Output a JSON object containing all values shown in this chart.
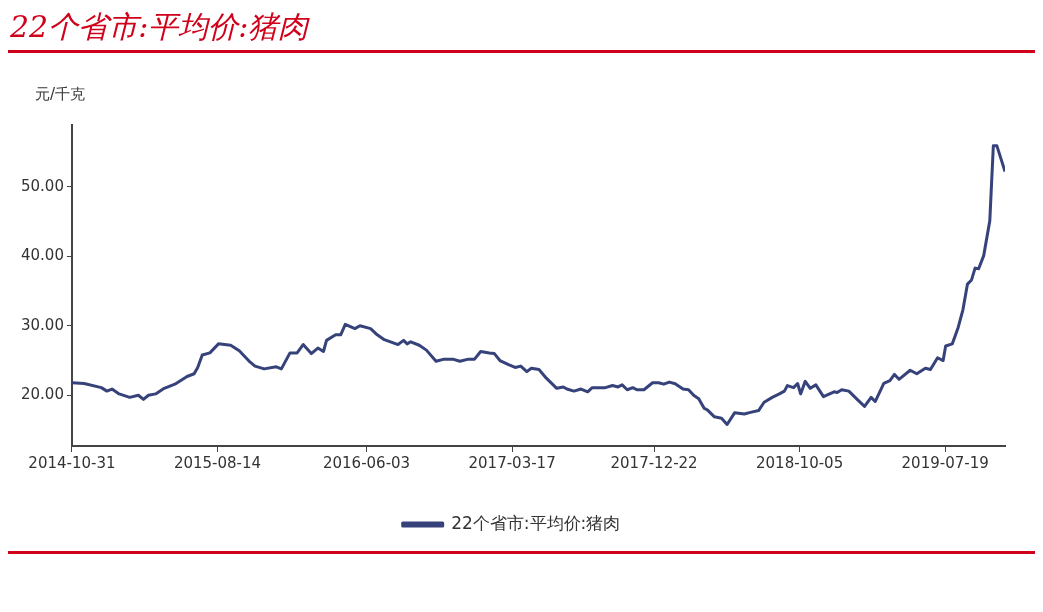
{
  "chart_data": {
    "type": "line",
    "title": "22个省市:平均价:猪肉",
    "ylabel": "元/千克",
    "legend": "bottom",
    "grid": false,
    "marker": "none",
    "line_style": "solid",
    "xlim": [
      "2014-10-31",
      "2019-11-14"
    ],
    "xticks": [
      "2014-10-31",
      "2015-08-14",
      "2016-06-03",
      "2017-03-17",
      "2017-12-22",
      "2018-10-05",
      "2019-07-19"
    ],
    "ylim": [
      12.7,
      58.9
    ],
    "yticks": [
      {
        "value": 20,
        "label": "20.00"
      },
      {
        "value": 30,
        "label": "30.00"
      },
      {
        "value": 40,
        "label": "40.00"
      },
      {
        "value": 50,
        "label": "50.00"
      }
    ],
    "x": [
      "2014-10-31",
      "2014-11-24",
      "2014-12-28",
      "2015-01-08",
      "2015-01-18",
      "2015-02-01",
      "2015-02-22",
      "2015-03-11",
      "2015-03-21",
      "2015-03-31",
      "2015-04-14",
      "2015-05-01",
      "2015-05-22",
      "2015-06-15",
      "2015-06-29",
      "2015-07-06",
      "2015-07-15",
      "2015-07-30",
      "2015-08-16",
      "2015-09-09",
      "2015-09-26",
      "2015-10-17",
      "2015-10-27",
      "2015-11-14",
      "2015-12-08",
      "2015-12-18",
      "2016-01-04",
      "2016-01-18",
      "2016-01-30",
      "2016-02-15",
      "2016-02-28",
      "2016-03-10",
      "2016-03-16",
      "2016-04-03",
      "2016-04-13",
      "2016-04-22",
      "2016-05-11",
      "2016-05-21",
      "2016-06-11",
      "2016-06-24",
      "2016-07-08",
      "2016-08-04",
      "2016-08-15",
      "2016-08-22",
      "2016-08-29",
      "2016-09-15",
      "2016-09-29",
      "2016-10-18",
      "2016-11-03",
      "2016-11-20",
      "2016-12-04",
      "2016-12-21",
      "2017-01-02",
      "2017-01-14",
      "2017-01-31",
      "2017-02-10",
      "2017-02-21",
      "2017-03-10",
      "2017-03-23",
      "2017-04-03",
      "2017-04-15",
      "2017-04-24",
      "2017-05-09",
      "2017-05-23",
      "2017-06-13",
      "2017-06-26",
      "2017-07-03",
      "2017-07-17",
      "2017-07-31",
      "2017-08-13",
      "2017-08-22",
      "2017-09-17",
      "2017-10-01",
      "2017-10-12",
      "2017-10-20",
      "2017-10-30",
      "2017-11-10",
      "2017-11-18",
      "2017-12-02",
      "2017-12-19",
      "2017-12-31",
      "2018-01-10",
      "2018-01-21",
      "2018-01-31",
      "2018-02-03",
      "2018-02-17",
      "2018-02-28",
      "2018-03-10",
      "2018-03-20",
      "2018-03-31",
      "2018-04-06",
      "2018-04-20",
      "2018-05-04",
      "2018-05-15",
      "2018-05-30",
      "2018-06-18",
      "2018-06-28",
      "2018-07-16",
      "2018-07-27",
      "2018-08-12",
      "2018-08-26",
      "2018-09-05",
      "2018-09-11",
      "2018-09-23",
      "2018-10-01",
      "2018-10-07",
      "2018-10-16",
      "2018-10-26",
      "2018-11-06",
      "2018-11-21",
      "2018-12-12",
      "2018-12-18",
      "2018-12-27",
      "2019-01-10",
      "2019-01-28",
      "2019-02-10",
      "2019-02-23",
      "2019-03-03",
      "2019-03-20",
      "2019-04-01",
      "2019-04-10",
      "2019-04-19",
      "2019-05-11",
      "2019-05-24",
      "2019-06-10",
      "2019-06-20",
      "2019-07-04",
      "2019-07-15",
      "2019-07-20",
      "2019-08-02",
      "2019-08-13",
      "2019-08-23",
      "2019-09-01",
      "2019-09-09",
      "2019-09-16",
      "2019-09-23",
      "2019-10-03",
      "2019-10-15",
      "2019-10-22",
      "2019-10-29",
      "2019-11-14"
    ],
    "series": [
      {
        "name": "22个省市:平均价:猪肉",
        "color": "#36427a",
        "values": [
          21.8,
          21.7,
          21.1,
          20.6,
          20.9,
          20.2,
          19.7,
          20.0,
          19.4,
          20.0,
          20.2,
          21.0,
          21.6,
          22.7,
          23.1,
          24.0,
          25.8,
          26.1,
          27.4,
          27.2,
          26.4,
          24.8,
          24.2,
          23.8,
          24.1,
          23.8,
          26.1,
          26.1,
          27.3,
          26.0,
          26.8,
          26.3,
          27.9,
          28.7,
          28.7,
          30.2,
          29.6,
          30.0,
          29.6,
          28.7,
          28.0,
          27.3,
          27.9,
          27.4,
          27.7,
          27.2,
          26.5,
          24.9,
          25.2,
          25.2,
          24.9,
          25.2,
          25.2,
          26.3,
          26.1,
          26.0,
          25.0,
          24.4,
          24.0,
          24.2,
          23.4,
          23.9,
          23.7,
          22.5,
          21.0,
          21.2,
          20.9,
          20.6,
          20.9,
          20.5,
          21.1,
          21.1,
          21.4,
          21.2,
          21.5,
          20.8,
          21.1,
          20.8,
          20.8,
          21.8,
          21.8,
          21.6,
          21.9,
          21.7,
          21.6,
          20.9,
          20.8,
          20.0,
          19.5,
          18.1,
          17.9,
          16.9,
          16.7,
          15.8,
          17.5,
          17.3,
          17.5,
          17.8,
          19.0,
          19.7,
          20.2,
          20.6,
          21.4,
          21.1,
          21.7,
          20.2,
          22.0,
          21.0,
          21.5,
          19.8,
          20.5,
          20.4,
          20.8,
          20.6,
          19.3,
          18.4,
          19.7,
          19.1,
          21.7,
          22.1,
          23.0,
          22.3,
          23.6,
          23.1,
          23.9,
          23.7,
          25.4,
          25.0,
          27.1,
          27.4,
          29.6,
          32.3,
          36.0,
          36.6,
          38.3,
          38.2,
          40.1,
          45.1,
          55.9,
          55.9,
          52.2
        ]
      }
    ]
  }
}
